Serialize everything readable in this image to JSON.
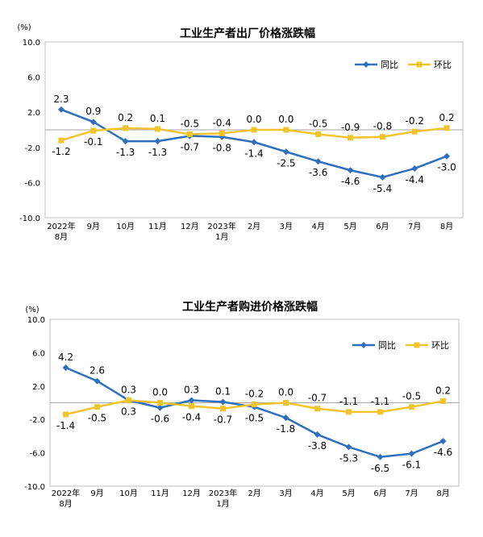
{
  "colors": {
    "yoy": "#2E6FBE",
    "mom": "#F2C42C",
    "frame": "#BFBFBF",
    "zero": "#A6A6A6"
  },
  "chart_data": [
    {
      "type": "line",
      "title": "工业生产者出厂价格涨跌幅",
      "unit": "(%)",
      "ylim": [
        -10,
        10
      ],
      "yticks": [
        "10.0",
        "6.0",
        "2.0",
        "-2.0",
        "-6.0",
        "-10.0"
      ],
      "categories": [
        "2022年\n8月",
        "9月",
        "10月",
        "11月",
        "12月",
        "2023年\n1月",
        "2月",
        "3月",
        "4月",
        "5月",
        "6月",
        "7月",
        "8月"
      ],
      "legend": [
        "同比",
        "环比"
      ],
      "series": [
        {
          "name": "同比",
          "values": [
            2.3,
            0.9,
            -1.3,
            -1.3,
            -0.7,
            -0.8,
            -1.4,
            -2.5,
            -3.6,
            -4.6,
            -5.4,
            -4.4,
            -3.0
          ],
          "labels": [
            "2.3",
            "0.9",
            "-1.3",
            "-1.3",
            "-0.7",
            "-0.8",
            "-1.4",
            "-2.5",
            "-3.6",
            "-4.6",
            "-5.4",
            "-4.4",
            "-3.0"
          ]
        },
        {
          "name": "环比",
          "values": [
            -1.2,
            -0.1,
            0.2,
            0.1,
            -0.5,
            -0.4,
            0.0,
            0.0,
            -0.5,
            -0.9,
            -0.8,
            -0.2,
            0.2
          ],
          "labels": [
            "-1.2",
            "-0.1",
            "0.2",
            "0.1",
            "-0.5",
            "-0.4",
            "0.0",
            "0.0",
            "-0.5",
            "-0.9",
            "-0.8",
            "-0.2",
            "0.2"
          ]
        }
      ]
    },
    {
      "type": "line",
      "title": "工业生产者购进价格涨跌幅",
      "unit": "(%)",
      "ylim": [
        -10,
        10
      ],
      "yticks": [
        "10.0",
        "6.0",
        "2.0",
        "-2.0",
        "-6.0",
        "-10.0"
      ],
      "categories": [
        "2022年\n8月",
        "9月",
        "10月",
        "11月",
        "12月",
        "2023年\n1月",
        "2月",
        "3月",
        "4月",
        "5月",
        "6月",
        "7月",
        "8月"
      ],
      "legend": [
        "同比",
        "环比"
      ],
      "series": [
        {
          "name": "同比",
          "values": [
            4.2,
            2.6,
            0.3,
            -0.6,
            0.3,
            0.1,
            -0.5,
            -1.8,
            -3.8,
            -5.3,
            -6.5,
            -6.1,
            -4.6
          ],
          "labels": [
            "4.2",
            "2.6",
            "0.3",
            "-0.6",
            "0.3",
            "0.1",
            "-0.5",
            "-1.8",
            "-3.8",
            "-5.3",
            "-6.5",
            "-6.1",
            "-4.6"
          ]
        },
        {
          "name": "环比",
          "values": [
            -1.4,
            -0.5,
            0.3,
            0.0,
            -0.4,
            -0.7,
            -0.2,
            0.0,
            -0.7,
            -1.1,
            -1.1,
            -0.5,
            0.2
          ],
          "labels": [
            "-1.4",
            "-0.5",
            "0.3",
            "0.0",
            "-0.4",
            "-0.7",
            "-0.2",
            "0.0",
            "-0.7",
            "-1.1",
            "-1.1",
            "-0.5",
            "0.2"
          ]
        }
      ]
    }
  ]
}
